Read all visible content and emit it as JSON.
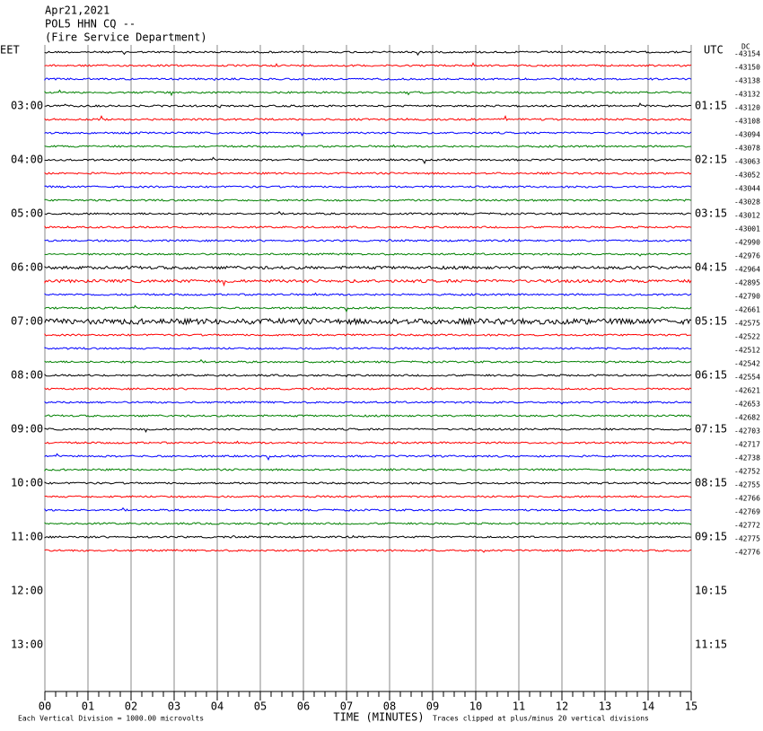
{
  "chart_data": {
    "type": "helicorder",
    "title_lines": [
      "Apr21,2021",
      "POL5 HHN CQ --",
      "(Fire Service Department)"
    ],
    "left_zone": "EET",
    "right_zone": "UTC",
    "corner_label": "DC",
    "left_times": [
      "03:00",
      "04:00",
      "05:00",
      "06:00",
      "07:00",
      "08:00",
      "09:00",
      "10:00",
      "11:00",
      "12:00",
      "13:00"
    ],
    "right_times": [
      "01:15",
      "02:15",
      "03:15",
      "04:15",
      "05:15",
      "06:15",
      "07:15",
      "08:15",
      "09:15",
      "10:15",
      "11:15"
    ],
    "trace_offsets": [
      -43154,
      -43150,
      -43138,
      -43132,
      -43120,
      -43108,
      -43094,
      -43078,
      -43063,
      -43052,
      -43044,
      -43028,
      -43012,
      -43001,
      -42990,
      -42976,
      -42964,
      -42895,
      -42790,
      -42661,
      -42575,
      -42522,
      -42512,
      -42542,
      -42554,
      -42621,
      -42653,
      -42682,
      -42703,
      -42717,
      -42738,
      -42752,
      -42755,
      -42766,
      -42769,
      -42772,
      -42775,
      -42776
    ],
    "trace_colors": [
      "#000000",
      "#ff0000",
      "#0000ff",
      "#008000"
    ],
    "xlim": [
      0,
      15
    ],
    "xticks": [
      {
        "value": 0,
        "label": "00"
      },
      {
        "value": 1,
        "label": "01"
      },
      {
        "value": 2,
        "label": "02"
      },
      {
        "value": 3,
        "label": "03"
      },
      {
        "value": 4,
        "label": "04"
      },
      {
        "value": 5,
        "label": "05"
      },
      {
        "value": 6,
        "label": "06"
      },
      {
        "value": 7,
        "label": "07"
      },
      {
        "value": 8,
        "label": "08"
      },
      {
        "value": 9,
        "label": "09"
      },
      {
        "value": 10,
        "label": "10"
      },
      {
        "value": 11,
        "label": "11"
      },
      {
        "value": 12,
        "label": "12"
      },
      {
        "value": 13,
        "label": "13"
      },
      {
        "value": 14,
        "label": "14"
      },
      {
        "value": 15,
        "label": "15"
      }
    ],
    "xlabel": "TIME (MINUTES)",
    "scale_note": "Each Vertical Division = 1000.00 microvolts",
    "clip_note": "Traces clipped at plus/minus 20 vertical divisions"
  }
}
